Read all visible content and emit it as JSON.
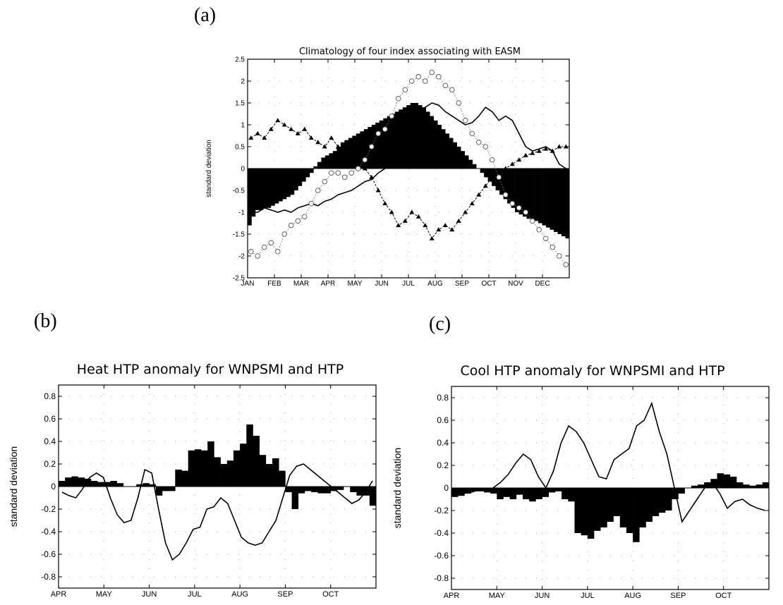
{
  "panel_labels": {
    "a": "(a)",
    "b": "(b)",
    "c": "(c)"
  },
  "chart_data": [
    {
      "id": "a",
      "type": "bar",
      "title": "Climatology of four index associating with EASM",
      "ylabel": "standard deviation",
      "xlabel": "",
      "ylim": [
        -2.5,
        2.5
      ],
      "yticks": [
        -2.5,
        -2,
        -1.5,
        -1,
        -0.5,
        0,
        0.5,
        1,
        1.5,
        2,
        2.5
      ],
      "ytick_labels": [
        "-2.5",
        "-2",
        "-1.5",
        "-1",
        "-0.5",
        "0",
        "0.5",
        "1",
        "1.5",
        "2",
        "2.5"
      ],
      "month_labels": [
        "JAN",
        "FEB",
        "MAR",
        "APR",
        "MAY",
        "JUN",
        "JUL",
        "AUG",
        "SEP",
        "OCT",
        "NOV",
        "DEC"
      ],
      "grid": "dotted",
      "series": [
        {
          "kind": "bar",
          "values": [
            -1.3,
            -1.1,
            -0.95,
            -0.95,
            -0.9,
            -0.9,
            -0.85,
            -0.8,
            -0.75,
            -0.7,
            -0.65,
            -0.6,
            -0.5,
            -0.4,
            -0.3,
            -0.2,
            -0.1,
            0.05,
            0.15,
            0.25,
            0.3,
            0.35,
            0.4,
            0.5,
            0.6,
            0.65,
            0.7,
            0.75,
            0.8,
            0.85,
            0.9,
            0.95,
            1.0,
            1.05,
            1.1,
            1.15,
            1.2,
            1.25,
            1.3,
            1.35,
            1.4,
            1.45,
            1.5,
            1.5,
            1.45,
            1.4,
            1.3,
            1.2,
            1.1,
            1.0,
            0.9,
            0.8,
            0.7,
            0.6,
            0.5,
            0.4,
            0.3,
            0.2,
            0.1,
            0.0,
            -0.1,
            -0.2,
            -0.3,
            -0.4,
            -0.5,
            -0.6,
            -0.7,
            -0.8,
            -0.9,
            -1.0,
            -1.05,
            -1.1,
            -1.15,
            -1.2,
            -1.2,
            -1.25,
            -1.3,
            -1.35,
            -1.4,
            -1.45,
            -1.5,
            -1.55,
            -1.6
          ]
        },
        {
          "kind": "line",
          "style": "solid",
          "values": [
            -1.0,
            -1.0,
            -0.9,
            -0.95,
            -1.0,
            -0.95,
            -1.0,
            -0.9,
            -0.85,
            -0.8,
            -0.85,
            -0.75,
            -0.7,
            -0.6,
            -0.55,
            -0.5,
            -0.4,
            -0.3,
            -0.25,
            -0.1,
            0.0,
            0.2,
            0.5,
            0.8,
            1.1,
            1.3,
            1.4,
            1.5,
            1.45,
            1.3,
            1.2,
            1.1,
            1.0,
            1.05,
            1.2,
            1.4,
            1.3,
            1.1,
            1.2,
            1.1,
            0.8,
            0.5,
            0.4,
            0.45,
            0.5,
            0.4,
            0.1,
            0.0
          ]
        },
        {
          "kind": "line",
          "style": "triangle",
          "values": [
            0.7,
            0.8,
            0.7,
            0.9,
            1.1,
            1.0,
            0.9,
            0.8,
            0.9,
            0.7,
            0.6,
            0.5,
            0.7,
            0.5,
            0.4,
            0.3,
            0.2,
            0.0,
            -0.2,
            -0.5,
            -0.8,
            -1.0,
            -1.3,
            -1.2,
            -1.0,
            -1.1,
            -1.3,
            -1.6,
            -1.4,
            -1.3,
            -1.4,
            -1.2,
            -1.0,
            -0.8,
            -0.6,
            -0.4,
            -0.2,
            -0.1,
            0.0,
            0.1,
            0.2,
            0.3,
            0.35,
            0.4,
            0.45,
            0.4,
            0.5,
            0.5
          ]
        },
        {
          "kind": "line",
          "style": "circle",
          "values": [
            -1.9,
            -2.0,
            -1.8,
            -1.7,
            -1.9,
            -1.5,
            -1.3,
            -1.2,
            -1.1,
            -0.8,
            -0.5,
            -0.3,
            -0.1,
            -0.1,
            -0.2,
            -0.1,
            0.0,
            0.2,
            0.5,
            0.8,
            0.9,
            1.2,
            1.6,
            1.8,
            2.0,
            2.1,
            2.0,
            2.2,
            2.1,
            1.9,
            1.8,
            1.5,
            1.1,
            0.8,
            0.6,
            0.5,
            0.2,
            -0.2,
            -0.6,
            -0.8,
            -0.9,
            -1.0,
            -1.2,
            -1.4,
            -1.6,
            -1.8,
            -2.0,
            -2.2
          ]
        }
      ]
    },
    {
      "id": "b",
      "type": "bar",
      "title": "Heat HTP anomaly for WNPSMI and HTP",
      "ylabel": "standard deviation",
      "xlabel": "",
      "ylim": [
        -0.9,
        0.9
      ],
      "yticks": [
        -0.8,
        -0.6,
        -0.4,
        -0.2,
        0,
        0.2,
        0.4,
        0.6,
        0.8
      ],
      "ytick_labels": [
        "-0.8",
        "-0.6",
        "-0.4",
        "-0.2",
        "0",
        "0.2",
        "0.4",
        "0.6",
        "0.8"
      ],
      "month_labels": [
        "APR",
        "MAY",
        "JUN",
        "JUL",
        "AUG",
        "SEP",
        "OCT"
      ],
      "grid": "dotted",
      "series": [
        {
          "kind": "bar",
          "values": [
            0.05,
            0.08,
            0.09,
            0.08,
            0.07,
            0.05,
            0.04,
            0.04,
            0.05,
            0.03,
            0.0,
            0.0,
            0.02,
            0.03,
            0.02,
            -0.08,
            -0.04,
            -0.04,
            0.15,
            0.14,
            0.32,
            0.33,
            0.32,
            0.4,
            0.26,
            0.2,
            0.23,
            0.32,
            0.38,
            0.55,
            0.45,
            0.28,
            0.2,
            0.25,
            0.14,
            -0.05,
            -0.2,
            -0.06,
            -0.04,
            -0.05,
            -0.06,
            -0.06,
            -0.04,
            -0.03,
            0.0,
            -0.05,
            -0.08,
            -0.08,
            -0.17
          ]
        },
        {
          "kind": "line",
          "style": "solid",
          "values": [
            -0.05,
            -0.08,
            -0.1,
            -0.02,
            0.08,
            0.12,
            0.08,
            -0.1,
            -0.25,
            -0.32,
            -0.3,
            -0.1,
            0.15,
            0.12,
            -0.2,
            -0.5,
            -0.65,
            -0.6,
            -0.5,
            -0.38,
            -0.36,
            -0.2,
            -0.18,
            -0.1,
            -0.15,
            -0.3,
            -0.45,
            -0.5,
            -0.52,
            -0.5,
            -0.4,
            -0.3,
            -0.1,
            0.1,
            0.18,
            0.2,
            0.15,
            0.1,
            0.05,
            0.0,
            -0.05,
            -0.1,
            -0.15,
            -0.12,
            -0.05,
            0.05
          ]
        }
      ]
    },
    {
      "id": "c",
      "type": "bar",
      "title": "Cool HTP anomaly for WNPSMI and HTP",
      "ylabel": "standard deviation",
      "xlabel": "",
      "ylim": [
        -0.9,
        0.9
      ],
      "yticks": [
        -0.8,
        -0.6,
        -0.4,
        -0.2,
        0,
        0.2,
        0.4,
        0.6,
        0.8
      ],
      "ytick_labels": [
        "-0.8",
        "-0.6",
        "-0.4",
        "-0.2",
        "0",
        "0.2",
        "0.4",
        "0.6",
        "0.8"
      ],
      "month_labels": [
        "APR",
        "MAY",
        "JUN",
        "JUL",
        "AUG",
        "SEP",
        "OCT"
      ],
      "grid": "dotted",
      "series": [
        {
          "kind": "bar",
          "values": [
            -0.08,
            -0.07,
            -0.05,
            -0.03,
            -0.03,
            -0.04,
            -0.05,
            -0.1,
            -0.08,
            -0.1,
            -0.06,
            -0.1,
            -0.12,
            -0.1,
            -0.08,
            -0.04,
            -0.03,
            -0.1,
            -0.12,
            -0.4,
            -0.42,
            -0.45,
            -0.38,
            -0.35,
            -0.3,
            -0.25,
            -0.35,
            -0.4,
            -0.48,
            -0.35,
            -0.3,
            -0.25,
            -0.22,
            -0.2,
            -0.1,
            -0.05,
            0.0,
            0.02,
            0.03,
            0.05,
            0.08,
            0.13,
            0.12,
            0.1,
            0.05,
            0.03,
            0.02,
            0.03,
            0.05
          ]
        },
        {
          "kind": "line",
          "style": "solid",
          "values": [
            -0.05,
            -0.05,
            -0.04,
            -0.02,
            -0.02,
            0.0,
            0.05,
            0.12,
            0.22,
            0.3,
            0.25,
            0.1,
            0.0,
            0.15,
            0.4,
            0.55,
            0.5,
            0.4,
            0.25,
            0.1,
            0.08,
            0.25,
            0.3,
            0.35,
            0.55,
            0.6,
            0.75,
            0.5,
            0.3,
            0.0,
            -0.3,
            -0.2,
            -0.1,
            0.0,
            0.05,
            -0.05,
            -0.18,
            -0.12,
            -0.1,
            -0.15,
            -0.18,
            -0.2
          ]
        }
      ]
    }
  ]
}
